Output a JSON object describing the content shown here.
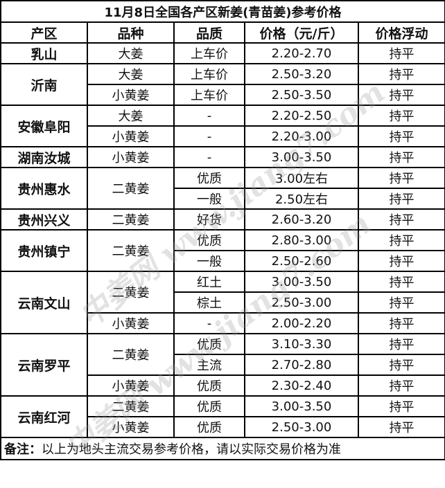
{
  "title": "11月8日全国各产区新姜(青苗姜)参考价格",
  "headers": [
    "产区",
    "品种",
    "品质",
    "价格（元/斤）",
    "价格浮动"
  ],
  "regions": [
    {
      "name": "乳山",
      "varieties": [
        {
          "name": "大姜",
          "rows": [
            {
              "quality": "上车价",
              "price": "2.20-2.70",
              "change": "持平"
            }
          ]
        }
      ]
    },
    {
      "name": "沂南",
      "varieties": [
        {
          "name": "大姜",
          "rows": [
            {
              "quality": "上车价",
              "price": "2.50-3.20",
              "change": "持平"
            }
          ]
        },
        {
          "name": "小黄姜",
          "rows": [
            {
              "quality": "上车价",
              "price": "2.50-3.50",
              "change": "持平"
            }
          ]
        }
      ]
    },
    {
      "name": "安徽阜阳",
      "varieties": [
        {
          "name": "大姜",
          "rows": [
            {
              "quality": "-",
              "price": "2.20-2.50",
              "change": "持平"
            }
          ]
        },
        {
          "name": "小黄姜",
          "rows": [
            {
              "quality": "-",
              "price": "2.20-3.00",
              "change": "持平"
            }
          ]
        }
      ]
    },
    {
      "name": "湖南汝城",
      "varieties": [
        {
          "name": "小黄姜",
          "rows": [
            {
              "quality": "-",
              "price": "3.00-3.50",
              "change": "持平"
            }
          ]
        }
      ]
    },
    {
      "name": "贵州惠水",
      "varieties": [
        {
          "name": "二黄姜",
          "rows": [
            {
              "quality": "优质",
              "price": "3.00左右",
              "change": "持平"
            },
            {
              "quality": "一般",
              "price": "2.50左右",
              "change": "持平"
            }
          ]
        }
      ]
    },
    {
      "name": "贵州兴义",
      "varieties": [
        {
          "name": "二黄姜",
          "rows": [
            {
              "quality": "好货",
              "price": "2.60-3.20",
              "change": "持平"
            }
          ]
        }
      ]
    },
    {
      "name": "贵州镇宁",
      "varieties": [
        {
          "name": "二黄姜",
          "rows": [
            {
              "quality": "优质",
              "price": "2.80-3.00",
              "change": "持平"
            },
            {
              "quality": "一般",
              "price": "2.50-2.60",
              "change": "持平"
            }
          ]
        }
      ]
    },
    {
      "name": "云南文山",
      "varieties": [
        {
          "name": "二黄姜",
          "rows": [
            {
              "quality": "红土",
              "price": "3.00-3.50",
              "change": "持平"
            },
            {
              "quality": "棕土",
              "price": "2.50-3.00",
              "change": "持平"
            }
          ]
        },
        {
          "name": "小黄姜",
          "rows": [
            {
              "quality": "-",
              "price": "2.00-2.20",
              "change": "持平"
            }
          ]
        }
      ]
    },
    {
      "name": "云南罗平",
      "varieties": [
        {
          "name": "二黄姜",
          "rows": [
            {
              "quality": "优质",
              "price": "3.10-3.30",
              "change": "持平"
            },
            {
              "quality": "主流",
              "price": "2.70-2.80",
              "change": "持平"
            }
          ]
        },
        {
          "name": "小黄姜",
          "rows": [
            {
              "quality": "优质",
              "price": "2.30-2.40",
              "change": "持平"
            }
          ]
        }
      ]
    },
    {
      "name": "云南红河",
      "varieties": [
        {
          "name": "二黄姜",
          "rows": [
            {
              "quality": "优质",
              "price": "3.00-3.50",
              "change": "持平"
            }
          ]
        },
        {
          "name": "小黄姜",
          "rows": [
            {
              "quality": "优质",
              "price": "2.50-3.00",
              "change": "持平"
            }
          ]
        }
      ]
    }
  ],
  "note": {
    "label": "备注：",
    "text": "以上为地头主流交易参考价格，请以实际交易价格为准"
  },
  "watermark": "中姜网 www.jiang7.com"
}
